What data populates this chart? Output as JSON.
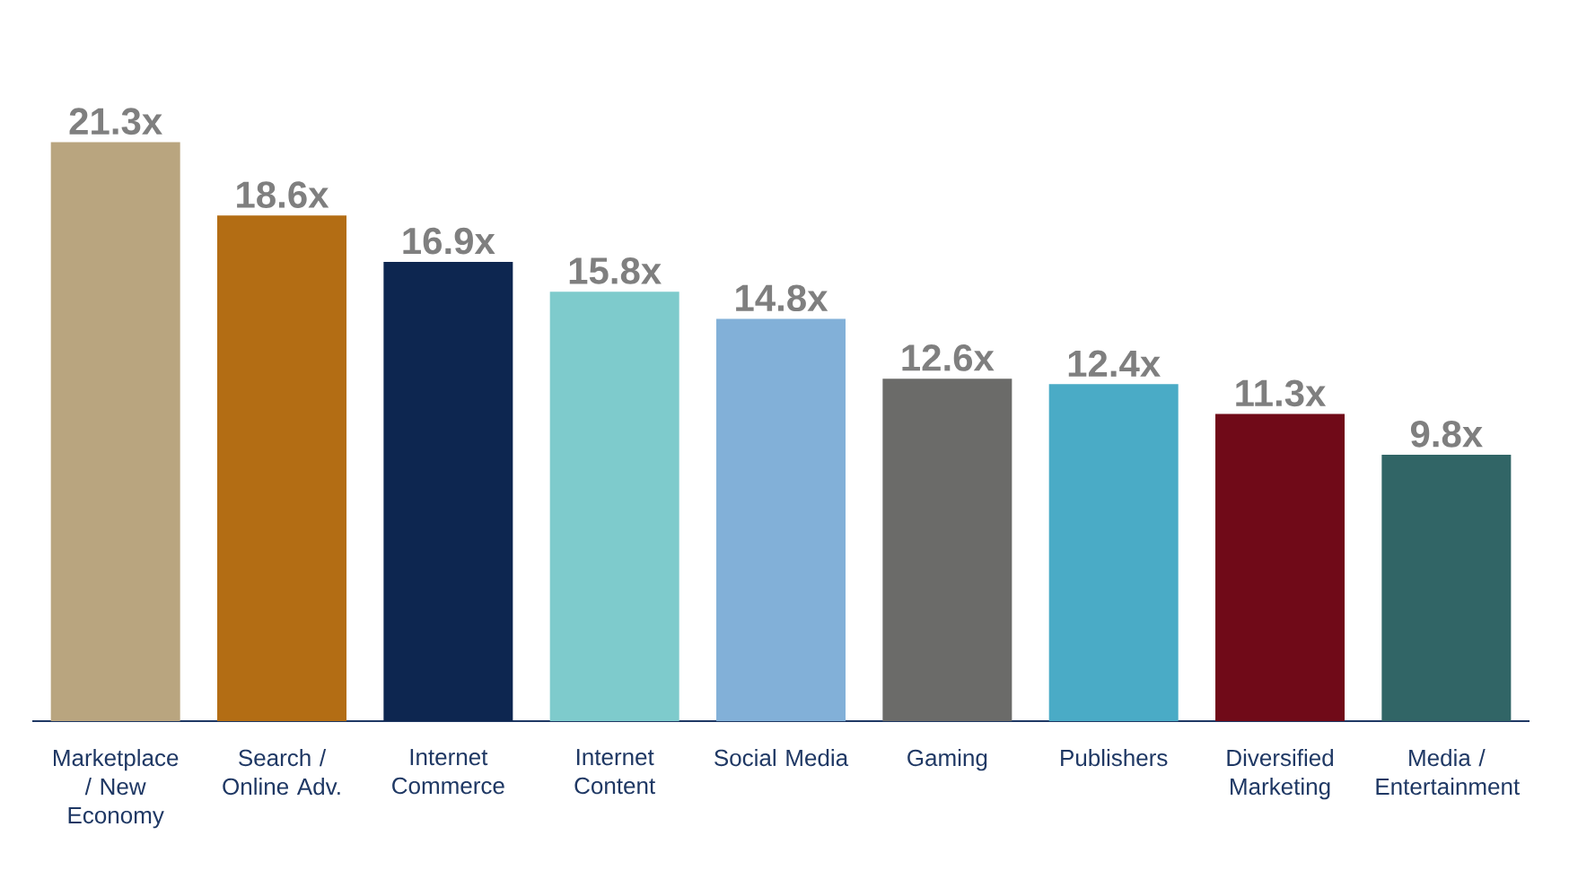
{
  "chart_data": {
    "type": "bar",
    "categories": [
      "Marketplace / New Economy",
      "Search / Online Adv.",
      "Internet Commerce",
      "Internet Content",
      "Social Media",
      "Gaming",
      "Publishers",
      "Diversified Marketing",
      "Media / Entertainment"
    ],
    "values": [
      21.3,
      18.6,
      16.9,
      15.8,
      14.8,
      12.6,
      12.4,
      11.3,
      9.8
    ],
    "value_labels": [
      "21.3x",
      "18.6x",
      "16.9x",
      "15.8x",
      "14.8x",
      "12.6x",
      "12.4x",
      "11.3x",
      "9.8x"
    ],
    "colors": [
      "#b9a57f",
      "#b36d14",
      "#0d2650",
      "#7ecbcc",
      "#82b0d8",
      "#6b6b69",
      "#4aabc6",
      "#700a18",
      "#316566"
    ],
    "tick_labels": "x"
  }
}
